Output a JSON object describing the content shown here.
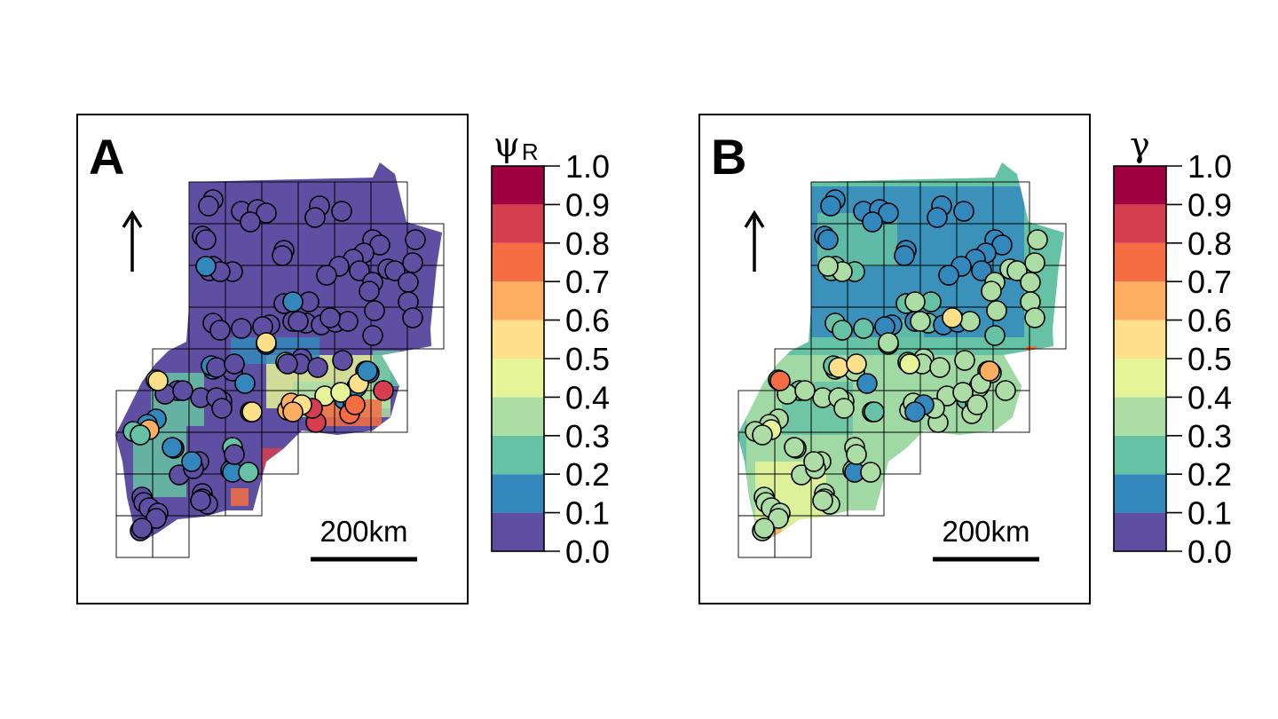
{
  "panels": [
    {
      "letter": "A",
      "legend_title": "ψ",
      "legend_subscript": "R",
      "scale_bar_label": "200km",
      "base_fill": "#5e4fa2",
      "point_classes": [
        0,
        0,
        0,
        0,
        0,
        0,
        0,
        0,
        0,
        0,
        0,
        0,
        0,
        0,
        0,
        0,
        0,
        0,
        0,
        0,
        0,
        0,
        0,
        0,
        0,
        0,
        0,
        0,
        0,
        0,
        0,
        0,
        0,
        0,
        0,
        0,
        0,
        0,
        0,
        0,
        0,
        0,
        0,
        0,
        0,
        0,
        0,
        0,
        0,
        1,
        1,
        1,
        1,
        2,
        0,
        0,
        0,
        0,
        0,
        0,
        1,
        1,
        1,
        1,
        0,
        0,
        0,
        0,
        1,
        2,
        5,
        4,
        5,
        4,
        4,
        5,
        8,
        8,
        7,
        7,
        8,
        6,
        6,
        5,
        6,
        1,
        0,
        0,
        0,
        0,
        0,
        0,
        0,
        0,
        0,
        0,
        1,
        1,
        6,
        2,
        2,
        1,
        1,
        2,
        0,
        0,
        0,
        0,
        0,
        0,
        0,
        1,
        1,
        0,
        0,
        0,
        0,
        0,
        0,
        1,
        5
      ]
    },
    {
      "letter": "B",
      "legend_title": "γ",
      "legend_subscript": "",
      "scale_bar_label": "200km",
      "base_fill": "#66c2a5",
      "point_classes": [
        1,
        1,
        1,
        1,
        1,
        1,
        1,
        1,
        1,
        1,
        1,
        1,
        1,
        1,
        1,
        1,
        1,
        1,
        1,
        1,
        3,
        3,
        3,
        3,
        3,
        3,
        3,
        3,
        3,
        3,
        2,
        2,
        2,
        2,
        2,
        2,
        2,
        1,
        1,
        1,
        1,
        1,
        2,
        2,
        2,
        2,
        3,
        3,
        3,
        2,
        2,
        1,
        1,
        2,
        3,
        3,
        3,
        3,
        3,
        2,
        2,
        2,
        3,
        3,
        3,
        3,
        3,
        3,
        3,
        3,
        3,
        2,
        2,
        3,
        3,
        3,
        3,
        3,
        3,
        3,
        3,
        3,
        3,
        1,
        1,
        1,
        3,
        3,
        3,
        3,
        3,
        3,
        3,
        3,
        3,
        3,
        3,
        3,
        4,
        3,
        3,
        3,
        3,
        3,
        3,
        3,
        3,
        3,
        3,
        3,
        3,
        3,
        3,
        3,
        3,
        5,
        5,
        5,
        4,
        6,
        7
      ]
    }
  ],
  "legend": {
    "colors": [
      "#5e4fa2",
      "#3288bd",
      "#66c2a5",
      "#abdda4",
      "#e6f598",
      "#fee08b",
      "#fdae61",
      "#f46d43",
      "#d53e4f",
      "#9e0142"
    ],
    "ticks": [
      "0.0",
      "0.1",
      "0.2",
      "0.3",
      "0.4",
      "0.5",
      "0.6",
      "0.7",
      "0.8",
      "0.9",
      "1.0"
    ]
  }
}
